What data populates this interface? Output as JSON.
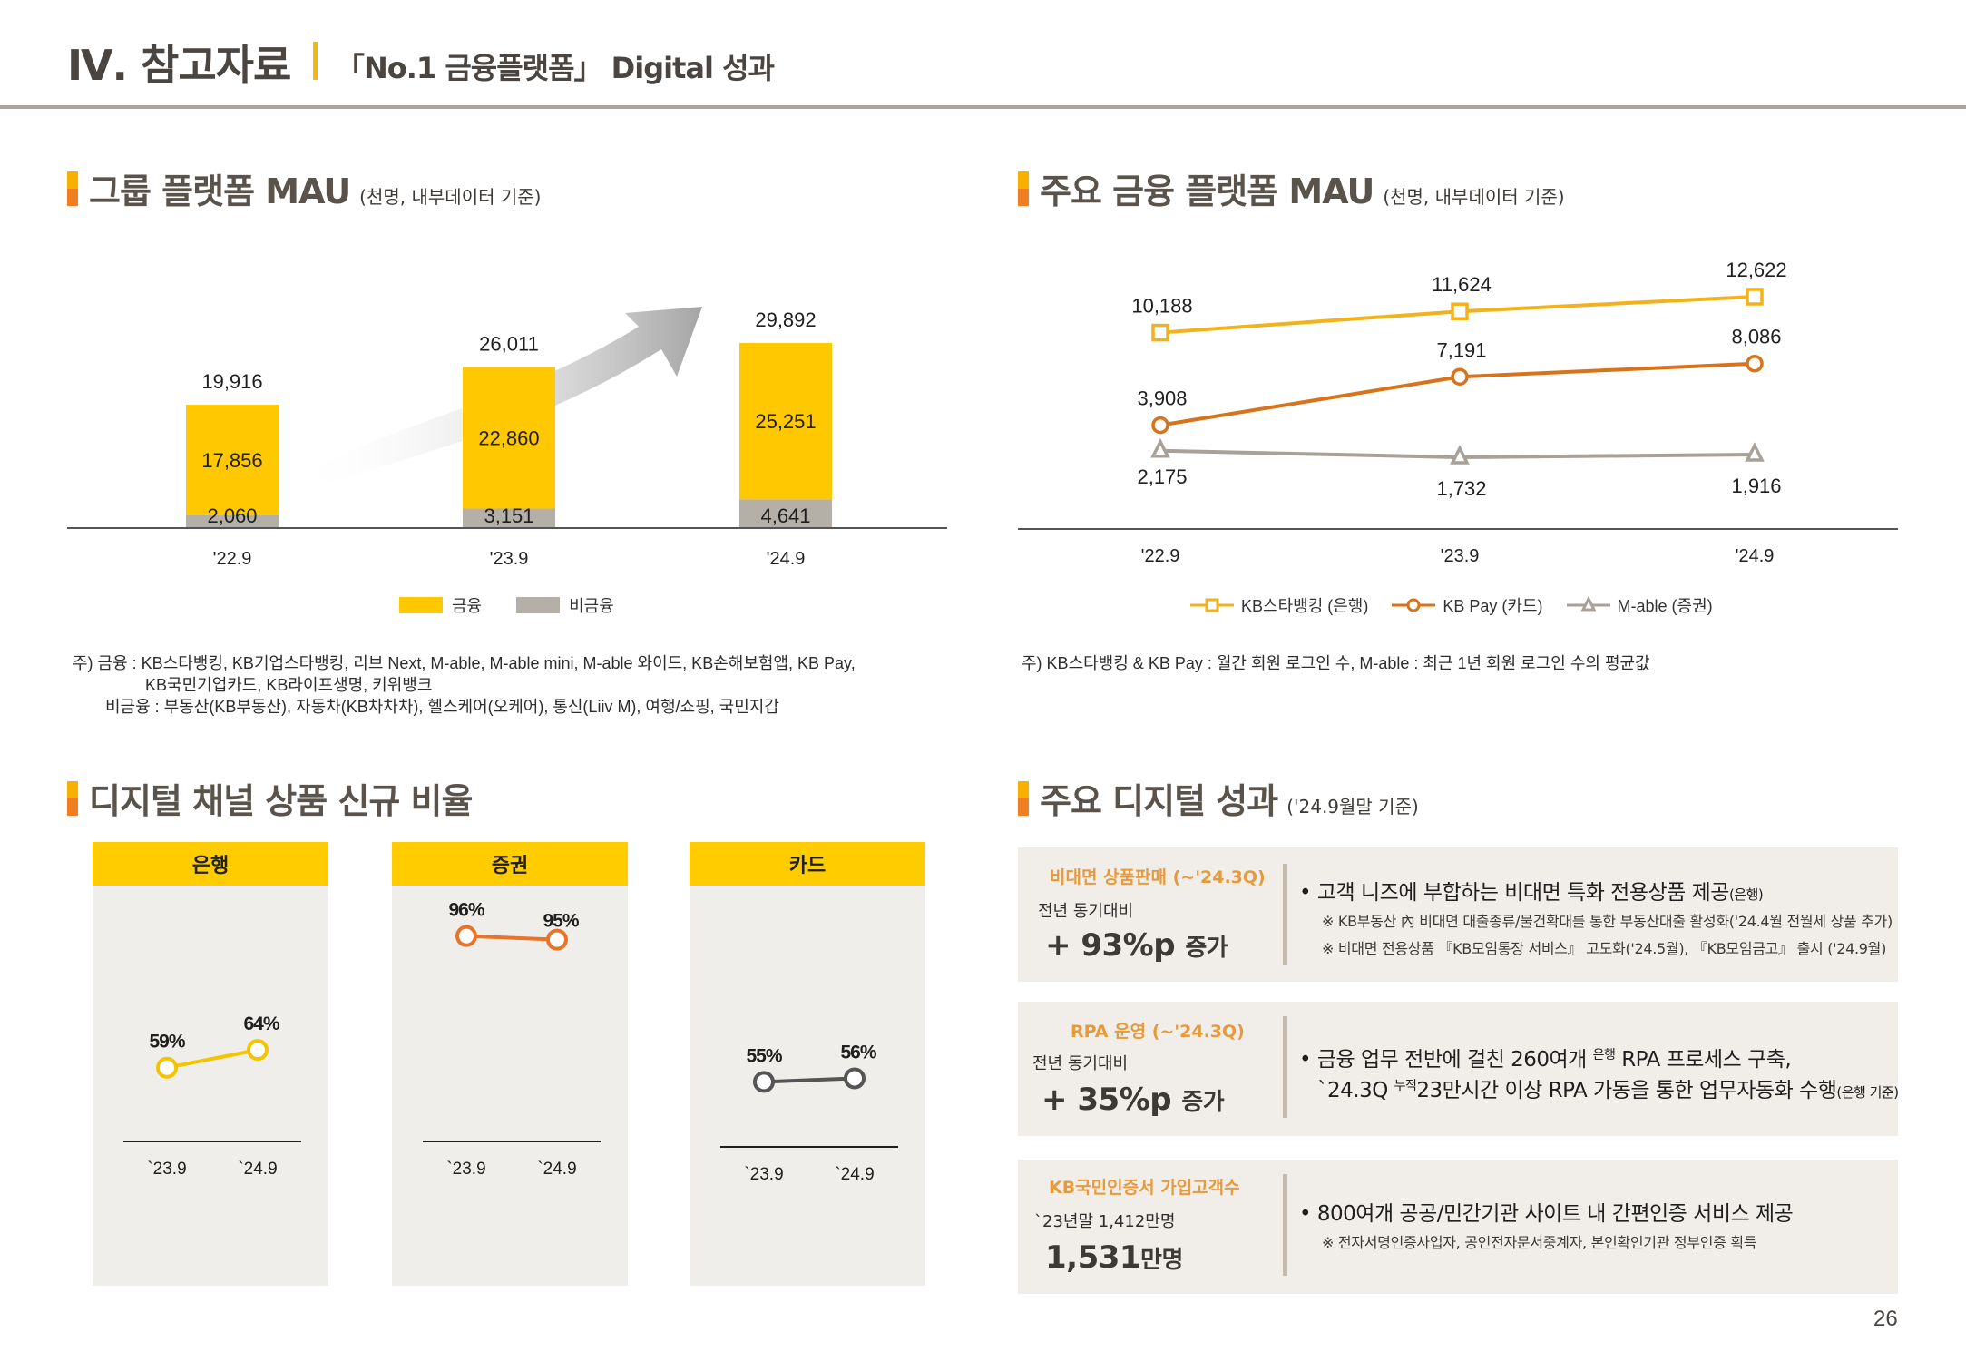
{
  "header": {
    "title": "Ⅳ. 참고자료",
    "subtitle": "「No.1 금융플랫폼」 Digital 성과"
  },
  "group_mau": {
    "title": "그룹 플랫폼 MAU",
    "unit_note": "(천명, 내부데이터 기준)",
    "legend": [
      {
        "label": "금융",
        "color": "#ffc800"
      },
      {
        "label": "비금융",
        "color": "#b5b0a7"
      }
    ],
    "notes": [
      "주) 금융 : KB스타뱅킹, KB기업스타뱅킹, 리브 Next, M-able, M-able mini, M-able 와이드, KB손해보험앱, KB Pay,",
      "KB국민기업카드, KB라이프생명, 키위뱅크",
      "비금융 : 부동산(KB부동산), 자동차(KB차차차), 헬스케어(오케어), 통신(Liiv M), 여행/쇼핑, 국민지갑"
    ]
  },
  "major_mau": {
    "title": "주요 금융 플랫폼 MAU",
    "unit_note": "(천명, 내부데이터 기준)",
    "note": "주) KB스타뱅킹 & KB Pay : 월간 회원 로그인 수, M-able : 최근 1년 회원 로그인 수의 평균값"
  },
  "digital_ratio": {
    "title": "디지털 채널 상품 신규 비율"
  },
  "digital_perf": {
    "title": "주요 디지털 성과",
    "unit_note": "('24.9월말 기준)",
    "items": [
      {
        "label": "비대면 상품판매 (~'24.3Q)",
        "sub": "전년 동기대비",
        "big": "+ 93%p",
        "big_suffix": "증가",
        "bullet": "고객 니즈에 부합하는 비대면 특화 전용상품 제공",
        "bullet_suffix": "(은행)",
        "notes": [
          "※ KB부동산 內 비대면 대출종류/물건확대를 통한 부동산대출 활성화('24.4월 전월세 상품 추가)",
          "※ 비대면 전용상품 『KB모임통장 서비스』 고도화('24.5월), 『KB모임금고』 출시 ('24.9월)"
        ]
      },
      {
        "label": "RPA 운영 (~'24.3Q)",
        "sub": "전년 동기대비",
        "big": "+ 35%p",
        "big_suffix": "증가",
        "bullet_line1_a": "금융 업무 전반에 걸친 260여개",
        "bullet_line1_sup": "은행",
        "bullet_line1_b": "RPA 프로세스 구축,",
        "bullet_line2_a": "`24.3Q",
        "bullet_line2_sup": "누적",
        "bullet_line2_b": "23만시간 이상 RPA 가동을 통한 업무자동화 수행",
        "bullet_line2_suffix": "(은행 기준)"
      },
      {
        "label": "KB국민인증서 가입고객수",
        "sub": "`23년말 1,412만명",
        "big": "1,531",
        "big_suffix": "만명",
        "bullet": "800여개 공공/민간기관 사이트 내 간편인증 서비스 제공",
        "notes": [
          "※ 전자서명인증사업자, 공인전자문서중계자, 본인확인기관 정부인증 획득"
        ]
      }
    ]
  },
  "page_number": "26",
  "chart_data": [
    {
      "type": "bar",
      "stacked": true,
      "title": "그룹 플랫폼 MAU",
      "unit": "천명",
      "categories": [
        "'22.9",
        "'23.9",
        "'24.9"
      ],
      "series": [
        {
          "name": "비금융",
          "color": "#b5b0a7",
          "values": [
            2060,
            3151,
            4641
          ]
        },
        {
          "name": "금융",
          "color": "#ffc800",
          "values": [
            17856,
            22860,
            25251
          ]
        }
      ],
      "totals": [
        19916,
        26011,
        29892
      ],
      "labels": {
        "비금융": [
          "2,060",
          "3,151",
          "4,641"
        ],
        "금융": [
          "17,856",
          "22,860",
          "25,251"
        ],
        "totals": [
          "19,916",
          "26,011",
          "29,892"
        ]
      },
      "ylim": [
        0,
        32000
      ],
      "grid": false,
      "legend": "bottom",
      "annotation": "growth-arrow"
    },
    {
      "type": "line",
      "title": "주요 금융 플랫폼 MAU",
      "unit": "천명",
      "categories": [
        "'22.9",
        "'23.9",
        "'24.9"
      ],
      "series": [
        {
          "name": "KB스타뱅킹 (은행)",
          "color": "#f2b21b",
          "marker": "square",
          "values": [
            10188,
            11624,
            12622
          ],
          "labels": [
            "10,188",
            "11,624",
            "12,622"
          ]
        },
        {
          "name": "KB Pay (카드)",
          "color": "#d9731a",
          "marker": "circle",
          "values": [
            3908,
            7191,
            8086
          ],
          "labels": [
            "3,908",
            "7,191",
            "8,086"
          ]
        },
        {
          "name": "M-able (증권)",
          "color": "#a8a198",
          "marker": "triangle",
          "values": [
            2175,
            1732,
            1916
          ],
          "labels": [
            "2,175",
            "1,732",
            "1,916"
          ]
        }
      ],
      "ylim": [
        -2500,
        14000
      ],
      "grid": false,
      "legend": "bottom"
    },
    {
      "type": "line",
      "title": "은행",
      "categories": [
        "`23.9",
        "`24.9"
      ],
      "series": [
        {
          "name": "은행",
          "color": "#f5c400",
          "values": [
            59,
            64
          ],
          "labels": [
            "59%",
            "64%"
          ]
        }
      ]
    },
    {
      "type": "line",
      "title": "증권",
      "categories": [
        "`23.9",
        "`24.9"
      ],
      "series": [
        {
          "name": "증권",
          "color": "#e8742a",
          "values": [
            96,
            95
          ],
          "labels": [
            "96%",
            "95%"
          ]
        }
      ]
    },
    {
      "type": "line",
      "title": "카드",
      "categories": [
        "`23.9",
        "`24.9"
      ],
      "series": [
        {
          "name": "카드",
          "color": "#555555",
          "values": [
            55,
            56
          ],
          "labels": [
            "55%",
            "56%"
          ]
        }
      ]
    }
  ]
}
